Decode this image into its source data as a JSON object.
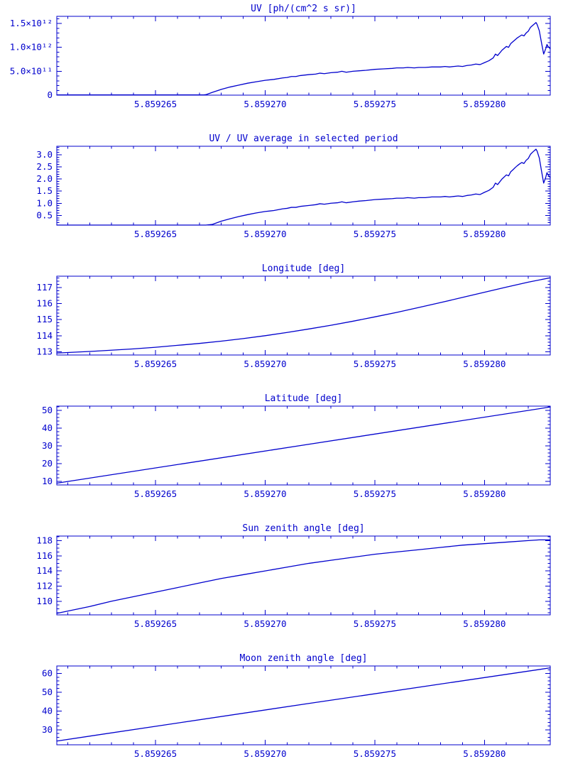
{
  "figure": {
    "background": "#ffffff",
    "description": "Six stacked time-series panels"
  },
  "colors": {
    "line": "#0000cd",
    "axis": "#0000cd",
    "text": "#0000cd",
    "background": "#ffffff"
  },
  "x_axis_shared": {
    "tick_labels": [
      "5.859265",
      "5.859270",
      "5.859275",
      "5.859280"
    ],
    "encoding_note": "x_plot = 5.85926 + u * 1e-6 (u values stored per chart)"
  },
  "chart_data": [
    {
      "type": "line",
      "title": "UV [ph/(cm^2 s sr)]",
      "ylabel": "",
      "xlabel": "",
      "y_scale": "values are in units of 1e11 ph/(cm^2 s sr)",
      "x_range_u": [
        0.5,
        23
      ],
      "x_ticks_u": [
        5,
        10,
        15,
        20
      ],
      "x_tick_labels": [
        "5.859265",
        "5.859270",
        "5.859275",
        "5.859280"
      ],
      "x_minor_u": 1,
      "y_range": [
        0,
        16.5
      ],
      "y_ticks": [
        0,
        5,
        10,
        15
      ],
      "y_tick_labels": [
        "0",
        "5.0×10¹¹",
        "1.0×10¹²",
        "1.5×10¹²"
      ],
      "y_minor": 1,
      "x_u": [
        0.5,
        7.2,
        7.3,
        7.6,
        8.0,
        8.4,
        8.8,
        9.2,
        9.6,
        10.0,
        10.4,
        10.8,
        11.0,
        11.2,
        11.4,
        11.6,
        12.0,
        12.3,
        12.5,
        12.7,
        13.0,
        13.3,
        13.5,
        13.7,
        14.0,
        14.3,
        14.6,
        15.0,
        15.4,
        15.8,
        16.0,
        16.3,
        16.5,
        16.8,
        17.0,
        17.3,
        17.6,
        18.0,
        18.2,
        18.4,
        18.6,
        18.8,
        19.0,
        19.2,
        19.4,
        19.6,
        19.8,
        20.0,
        20.2,
        20.4,
        20.5,
        20.6,
        20.8,
        21.0,
        21.1,
        21.2,
        21.3,
        21.4,
        21.5,
        21.6,
        21.7,
        21.8,
        21.9,
        22.0,
        22.1,
        22.2,
        22.3,
        22.35,
        22.4,
        22.5,
        22.6,
        22.7,
        22.8,
        22.85,
        22.9,
        23.0
      ],
      "values": [
        0.05,
        0.05,
        0.1,
        0.6,
        1.2,
        1.7,
        2.1,
        2.5,
        2.8,
        3.1,
        3.3,
        3.6,
        3.7,
        3.9,
        3.9,
        4.1,
        4.3,
        4.4,
        4.6,
        4.5,
        4.7,
        4.8,
        5.0,
        4.8,
        5.0,
        5.1,
        5.2,
        5.4,
        5.5,
        5.6,
        5.7,
        5.7,
        5.8,
        5.7,
        5.8,
        5.8,
        5.9,
        5.9,
        6.0,
        5.9,
        6.0,
        6.1,
        6.0,
        6.2,
        6.3,
        6.5,
        6.4,
        6.8,
        7.2,
        7.8,
        8.6,
        8.3,
        9.4,
        10.2,
        10.0,
        10.8,
        11.2,
        11.6,
        12.0,
        12.3,
        12.6,
        12.4,
        13.0,
        13.4,
        14.2,
        14.6,
        15.0,
        15.2,
        14.8,
        13.5,
        11.0,
        8.6,
        9.8,
        10.6,
        10.2,
        9.7
      ]
    },
    {
      "type": "line",
      "title": "UV / UV average in selected period",
      "ylabel": "",
      "xlabel": "",
      "x_range_u": [
        0.5,
        23
      ],
      "x_ticks_u": [
        5,
        10,
        15,
        20
      ],
      "x_tick_labels": [
        "5.859265",
        "5.859270",
        "5.859275",
        "5.859280"
      ],
      "x_minor_u": 1,
      "y_range": [
        0.1,
        3.35
      ],
      "y_ticks": [
        0.5,
        1.0,
        1.5,
        2.0,
        2.5,
        3.0
      ],
      "y_tick_labels": [
        "0.5",
        "1.0",
        "1.5",
        "2.0",
        "2.5",
        "3.0"
      ],
      "y_minor": 0.1,
      "x_u": [
        0.5,
        7.2,
        7.3,
        7.6,
        8.0,
        8.4,
        8.8,
        9.2,
        9.6,
        10.0,
        10.4,
        10.8,
        11.0,
        11.2,
        11.4,
        11.6,
        12.0,
        12.3,
        12.5,
        12.7,
        13.0,
        13.3,
        13.5,
        13.7,
        14.0,
        14.3,
        14.6,
        15.0,
        15.4,
        15.8,
        16.0,
        16.3,
        16.5,
        16.8,
        17.0,
        17.3,
        17.6,
        18.0,
        18.2,
        18.4,
        18.6,
        18.8,
        19.0,
        19.2,
        19.4,
        19.6,
        19.8,
        20.0,
        20.2,
        20.4,
        20.5,
        20.6,
        20.8,
        21.0,
        21.1,
        21.2,
        21.3,
        21.4,
        21.5,
        21.6,
        21.7,
        21.8,
        21.9,
        22.0,
        22.1,
        22.2,
        22.3,
        22.35,
        22.4,
        22.5,
        22.6,
        22.7,
        22.8,
        22.85,
        22.9,
        23.0
      ],
      "values": [
        0.01,
        0.01,
        0.02,
        0.13,
        0.26,
        0.36,
        0.45,
        0.53,
        0.6,
        0.66,
        0.7,
        0.77,
        0.79,
        0.83,
        0.83,
        0.87,
        0.91,
        0.94,
        0.98,
        0.96,
        1.0,
        1.02,
        1.06,
        1.02,
        1.06,
        1.09,
        1.11,
        1.15,
        1.17,
        1.19,
        1.21,
        1.21,
        1.23,
        1.21,
        1.23,
        1.23,
        1.26,
        1.26,
        1.28,
        1.26,
        1.28,
        1.3,
        1.28,
        1.32,
        1.34,
        1.38,
        1.36,
        1.45,
        1.53,
        1.66,
        1.83,
        1.77,
        2.0,
        2.17,
        2.13,
        2.3,
        2.38,
        2.47,
        2.55,
        2.62,
        2.68,
        2.64,
        2.77,
        2.85,
        3.02,
        3.11,
        3.19,
        3.23,
        3.15,
        2.87,
        2.34,
        1.83,
        2.09,
        2.26,
        2.17,
        2.06
      ]
    },
    {
      "type": "line",
      "title": "Longitude [deg]",
      "ylabel": "",
      "xlabel": "",
      "x_range_u": [
        0.5,
        23
      ],
      "x_ticks_u": [
        5,
        10,
        15,
        20
      ],
      "x_tick_labels": [
        "5.859265",
        "5.859270",
        "5.859275",
        "5.859280"
      ],
      "x_minor_u": 1,
      "y_range": [
        112.8,
        117.7
      ],
      "y_ticks": [
        113,
        114,
        115,
        116,
        117
      ],
      "y_tick_labels": [
        "113",
        "114",
        "115",
        "116",
        "117"
      ],
      "y_minor": 0.2,
      "x_u": [
        0.5,
        2,
        4,
        5,
        6,
        7,
        8,
        9,
        10,
        11,
        12,
        13,
        14,
        15,
        16,
        17,
        18,
        19,
        20,
        21,
        22,
        23
      ],
      "values": [
        112.92,
        113.02,
        113.18,
        113.28,
        113.4,
        113.52,
        113.66,
        113.82,
        114.0,
        114.2,
        114.42,
        114.65,
        114.9,
        115.17,
        115.45,
        115.75,
        116.06,
        116.38,
        116.7,
        117.02,
        117.33,
        117.6
      ]
    },
    {
      "type": "line",
      "title": "Latitude [deg]",
      "ylabel": "",
      "xlabel": "",
      "x_range_u": [
        0.5,
        23
      ],
      "x_ticks_u": [
        5,
        10,
        15,
        20
      ],
      "x_tick_labels": [
        "5.859265",
        "5.859270",
        "5.859275",
        "5.859280"
      ],
      "x_minor_u": 1,
      "y_range": [
        8,
        52.5
      ],
      "y_ticks": [
        10,
        20,
        30,
        40,
        50
      ],
      "y_tick_labels": [
        "10",
        "20",
        "30",
        "40",
        "50"
      ],
      "y_minor": 2,
      "x_u": [
        0.5,
        11.75,
        23
      ],
      "values": [
        9.0,
        30.5,
        52.0
      ]
    },
    {
      "type": "line",
      "title": "Sun zenith angle [deg]",
      "ylabel": "",
      "xlabel": "",
      "x_range_u": [
        0.5,
        23
      ],
      "x_ticks_u": [
        5,
        10,
        15,
        20
      ],
      "x_tick_labels": [
        "5.859265",
        "5.859270",
        "5.859275",
        "5.859280"
      ],
      "x_minor_u": 1,
      "y_range": [
        108.2,
        118.6
      ],
      "y_ticks": [
        110,
        112,
        114,
        116,
        118
      ],
      "y_tick_labels": [
        "110",
        "112",
        "114",
        "116",
        "118"
      ],
      "y_minor": 0.5,
      "x_u": [
        0.5,
        2,
        3,
        4,
        5,
        6,
        7,
        8,
        9,
        10,
        11,
        12,
        13,
        14,
        15,
        16,
        17,
        18,
        19,
        20,
        21,
        22,
        22.5,
        23
      ],
      "values": [
        108.4,
        109.3,
        110.0,
        110.6,
        111.2,
        111.8,
        112.4,
        113.0,
        113.5,
        114.0,
        114.5,
        115.0,
        115.4,
        115.8,
        116.2,
        116.5,
        116.8,
        117.1,
        117.4,
        117.6,
        117.8,
        118.0,
        118.1,
        118.1
      ]
    },
    {
      "type": "line",
      "title": "Moon zenith angle [deg]",
      "ylabel": "",
      "xlabel": "",
      "x_range_u": [
        0.5,
        23
      ],
      "x_ticks_u": [
        5,
        10,
        15,
        20
      ],
      "x_tick_labels": [
        "5.859265",
        "5.859270",
        "5.859275",
        "5.859280"
      ],
      "x_minor_u": 1,
      "y_range": [
        22,
        64
      ],
      "y_ticks": [
        30,
        40,
        50,
        60
      ],
      "y_tick_labels": [
        "30",
        "40",
        "50",
        "60"
      ],
      "y_minor": 2,
      "x_u": [
        0.5,
        11.75,
        23
      ],
      "values": [
        24.0,
        43.6,
        63.0
      ]
    }
  ]
}
